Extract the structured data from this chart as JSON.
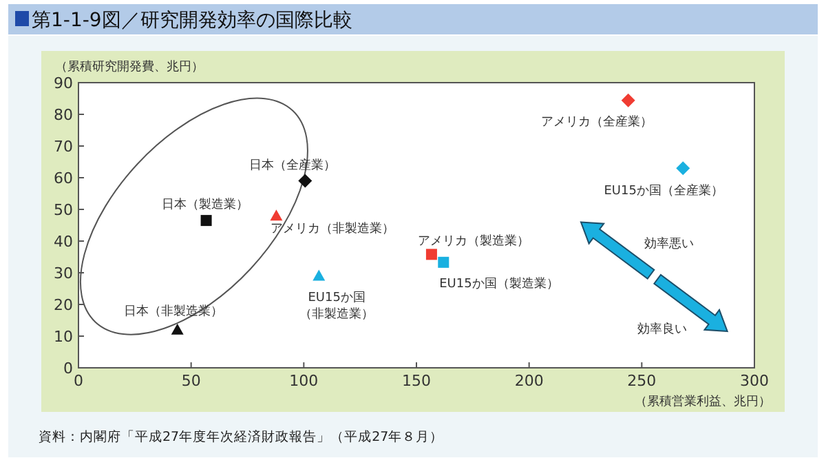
{
  "chart_data": {
    "type": "scatter",
    "title": "第1-1-9図／研究開発効率の国際比較",
    "xlabel": "（累積営業利益、兆円）",
    "ylabel": "（累積研究開発費、兆円）",
    "xlim": [
      0,
      300
    ],
    "xticks": [
      0,
      50,
      100,
      150,
      200,
      250,
      300
    ],
    "ylim": [
      0,
      90
    ],
    "yticks": [
      0,
      10,
      20,
      30,
      40,
      50,
      60,
      70,
      80,
      90
    ],
    "grid": false,
    "series": [
      {
        "name": "日本（全産業）",
        "color": "#111111",
        "marker": "diamond",
        "x": [
          100.6
        ],
        "values": [
          59
        ]
      },
      {
        "name": "日本（製造業）",
        "color": "#111111",
        "marker": "square",
        "x": [
          56.7
        ],
        "values": [
          46.5
        ]
      },
      {
        "name": "アメリカ（非製造業）",
        "color": "#f03c32",
        "marker": "triangle",
        "x": [
          87.8
        ],
        "values": [
          48
        ]
      },
      {
        "name": "日本（非製造業）",
        "color": "#111111",
        "marker": "triangle",
        "x": [
          43.9
        ],
        "values": [
          12
        ]
      },
      {
        "name": "EU15か国（非製造業）",
        "color": "#1ab0e0",
        "marker": "triangle",
        "x": [
          106.7
        ],
        "values": [
          29
        ]
      },
      {
        "name": "アメリカ（製造業）",
        "color": "#f03c32",
        "marker": "square",
        "x": [
          156.7
        ],
        "values": [
          35.8
        ]
      },
      {
        "name": "EU15か国（製造業）",
        "color": "#1ab0e0",
        "marker": "square",
        "x": [
          162
        ],
        "values": [
          33.3
        ]
      },
      {
        "name": "アメリカ（全産業）",
        "color": "#f03c32",
        "marker": "diamond",
        "x": [
          244
        ],
        "values": [
          84.4
        ]
      },
      {
        "name": "EU15か国（全産業）",
        "color": "#1ab0e0",
        "marker": "diamond",
        "x": [
          268.3
        ],
        "values": [
          63
        ]
      }
    ],
    "annotations": [
      "効率悪い",
      "効率良い",
      "資料：内閣府「平成27年度年次経済財政報告」（平成27年８月）"
    ]
  }
}
